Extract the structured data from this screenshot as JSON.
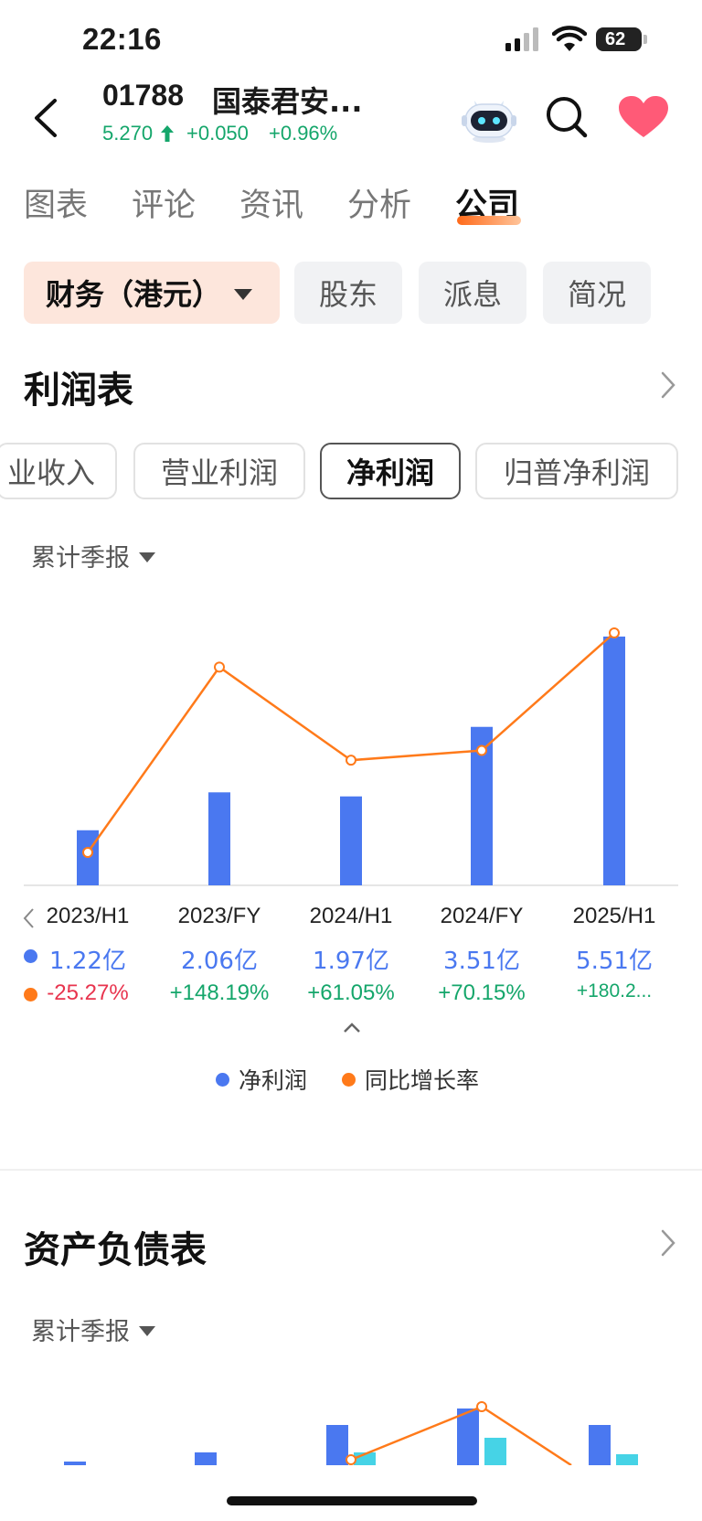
{
  "status_bar": {
    "time": "22:16",
    "battery": "62"
  },
  "header": {
    "code": "01788",
    "name": "国泰君安...",
    "price": "5.270",
    "change": "+0.050",
    "change_pct": "+0.96%"
  },
  "tabs": [
    {
      "label": "图表"
    },
    {
      "label": "评论"
    },
    {
      "label": "资讯"
    },
    {
      "label": "分析"
    },
    {
      "label": "公司"
    }
  ],
  "sub_tabs": [
    {
      "label": "财务（港元）"
    },
    {
      "label": "股东"
    },
    {
      "label": "派息"
    },
    {
      "label": "简况"
    }
  ],
  "income": {
    "title": "利润表",
    "metrics": [
      {
        "label": "业收入"
      },
      {
        "label": "营业利润"
      },
      {
        "label": "净利润"
      },
      {
        "label": "归普净利润"
      }
    ],
    "period": "累计季报",
    "legend_profit": "净利润",
    "legend_growth": "同比增长率"
  },
  "chart_data": {
    "type": "bar",
    "categories": [
      "2023/H1",
      "2023/FY",
      "2024/H1",
      "2024/FY",
      "2025/H1"
    ],
    "series": [
      {
        "name": "净利润",
        "values": [
          1.22,
          2.06,
          1.97,
          3.51,
          5.51
        ],
        "unit": "亿",
        "labels": [
          "1.22亿",
          "2.06亿",
          "1.97亿",
          "3.51亿",
          "5.51亿"
        ],
        "color": "#4a78f0"
      },
      {
        "name": "同比增长率",
        "type": "line",
        "values": [
          -25.27,
          148.19,
          61.05,
          70.15,
          180.2
        ],
        "labels": [
          "-25.27%",
          "+148.19%",
          "+61.05%",
          "+70.15%",
          "+180.2..."
        ],
        "color": "#ff7a1a"
      }
    ],
    "colors": {
      "negative": "#e8344e",
      "positive": "#15a66b"
    }
  },
  "balance": {
    "title": "资产负债表",
    "period": "累计季报"
  }
}
